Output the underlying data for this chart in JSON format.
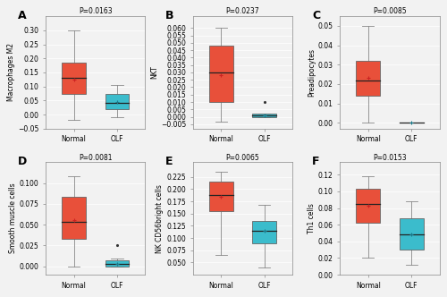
{
  "panels": [
    {
      "label": "A",
      "title": "P=0.0163",
      "ylabel": "Macrophages M2",
      "normal": {
        "whisker_low": -0.02,
        "q1": 0.075,
        "median": 0.13,
        "q3": 0.185,
        "whisker_high": 0.3,
        "mean": 0.125,
        "color": "#E8503A"
      },
      "olf": {
        "whisker_low": -0.008,
        "q1": 0.018,
        "median": 0.042,
        "q3": 0.075,
        "whisker_high": 0.105,
        "mean": 0.044,
        "color": "#3BBCCC"
      },
      "ylim": [
        -0.05,
        0.35
      ],
      "yticks": [
        -0.05,
        0.0,
        0.05,
        0.1,
        0.15,
        0.2,
        0.25,
        0.3
      ]
    },
    {
      "label": "B",
      "title": "P=0.0237",
      "ylabel": "NKT",
      "normal": {
        "whisker_low": -0.003,
        "q1": 0.01,
        "median": 0.03,
        "q3": 0.048,
        "whisker_high": 0.06,
        "mean": 0.028,
        "color": "#E8503A"
      },
      "olf": {
        "whisker_low": 0.0,
        "q1": 0.0,
        "median": 0.001,
        "q3": 0.002,
        "whisker_high": 0.002,
        "mean": 0.001,
        "outlier": 0.01,
        "color": "#3BBCCC"
      },
      "ylim": [
        -0.008,
        0.068
      ],
      "yticks": [
        -0.005,
        0.0,
        0.005,
        0.01,
        0.015,
        0.02,
        0.025,
        0.03,
        0.035,
        0.04,
        0.045,
        0.05,
        0.055,
        0.06
      ]
    },
    {
      "label": "C",
      "title": "P=0.0085",
      "ylabel": "Preadipocytes",
      "normal": {
        "whisker_low": 0.0,
        "q1": 0.014,
        "median": 0.022,
        "q3": 0.032,
        "whisker_high": 0.05,
        "mean": 0.023,
        "color": "#E8503A"
      },
      "olf": {
        "whisker_low": 0.0,
        "q1": 0.0,
        "median": 0.0,
        "q3": 0.0,
        "whisker_high": 0.0,
        "mean": 0.0,
        "color": "#3BBCCC"
      },
      "ylim": [
        -0.003,
        0.055
      ],
      "yticks": [
        0.0,
        0.01,
        0.02,
        0.03,
        0.04,
        0.05
      ]
    },
    {
      "label": "D",
      "title": "P=0.0081",
      "ylabel": "Smooth muscle cells",
      "normal": {
        "whisker_low": 0.0,
        "q1": 0.033,
        "median": 0.053,
        "q3": 0.083,
        "whisker_high": 0.108,
        "mean": 0.056,
        "color": "#E8503A"
      },
      "olf": {
        "whisker_low": 0.0,
        "q1": 0.0,
        "median": 0.003,
        "q3": 0.007,
        "whisker_high": 0.009,
        "mean": 0.003,
        "outlier": 0.026,
        "color": "#3BBCCC"
      },
      "ylim": [
        -0.01,
        0.125
      ],
      "yticks": [
        0.0,
        0.025,
        0.05,
        0.075,
        0.1
      ]
    },
    {
      "label": "E",
      "title": "P=0.0065",
      "ylabel": "NK CD56bright cells",
      "normal": {
        "whisker_low": 0.065,
        "q1": 0.155,
        "median": 0.188,
        "q3": 0.215,
        "whisker_high": 0.235,
        "mean": 0.185,
        "color": "#E8503A"
      },
      "olf": {
        "whisker_low": 0.04,
        "q1": 0.09,
        "median": 0.115,
        "q3": 0.135,
        "whisker_high": 0.168,
        "mean": 0.115,
        "color": "#3BBCCC"
      },
      "ylim": [
        0.025,
        0.255
      ],
      "yticks": [
        0.05,
        0.075,
        0.1,
        0.125,
        0.15,
        0.175,
        0.2,
        0.225
      ]
    },
    {
      "label": "F",
      "title": "P=0.0153",
      "ylabel": "Th1 cells",
      "normal": {
        "whisker_low": 0.02,
        "q1": 0.062,
        "median": 0.085,
        "q3": 0.103,
        "whisker_high": 0.118,
        "mean": 0.083,
        "color": "#E8503A"
      },
      "olf": {
        "whisker_low": 0.012,
        "q1": 0.03,
        "median": 0.048,
        "q3": 0.068,
        "whisker_high": 0.088,
        "mean": 0.048,
        "color": "#3BBCCC"
      },
      "ylim": [
        0.0,
        0.135
      ],
      "yticks": [
        0.0,
        0.02,
        0.04,
        0.06,
        0.08,
        0.1,
        0.12
      ]
    }
  ],
  "x_labels": [
    "Normal",
    "OLF"
  ],
  "box_width": 0.55,
  "tick_fontsize": 5.5,
  "title_fontsize": 5.5,
  "ylabel_fontsize": 5.5,
  "panel_label_fontsize": 9,
  "background_color": "#F2F2F2",
  "plot_bg_color": "#F2F2F2",
  "box_edge_color": "#666666",
  "whisker_color": "#888888",
  "median_color": "#222222",
  "grid_color": "#FFFFFF"
}
